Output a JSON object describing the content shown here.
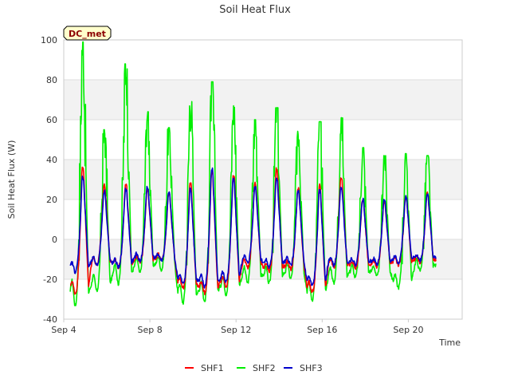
{
  "chart_data": {
    "type": "line",
    "title": "Soil Heat Flux",
    "xlabel": "Time",
    "ylabel": "Soil Heat Flux (W)",
    "ylim": [
      -40,
      100
    ],
    "yticks": [
      -40,
      -20,
      0,
      20,
      40,
      60,
      80,
      100
    ],
    "xlim_days": [
      4,
      22.5
    ],
    "xtick_days": [
      4,
      8,
      12,
      16,
      20
    ],
    "xticks": [
      "Sep 4",
      "Sep 8",
      "Sep 12",
      "Sep 16",
      "Sep 20"
    ],
    "badge": "DC_met",
    "grid_bands": true,
    "legend_position": "bottom-center",
    "legend": [
      {
        "name": "SHF1",
        "color": "#ff0000"
      },
      {
        "name": "SHF2",
        "color": "#00ee00"
      },
      {
        "name": "SHF3",
        "color": "#0000cc"
      }
    ],
    "series": [
      {
        "name": "SHF1",
        "color": "#ff0000",
        "daily": [
          {
            "peak": 36,
            "min": -24
          },
          {
            "peak": 27,
            "min": -11
          },
          {
            "peak": 27,
            "min": -12
          },
          {
            "peak": 25,
            "min": -10
          },
          {
            "peak": 23,
            "min": -9
          },
          {
            "peak": 28,
            "min": -22
          },
          {
            "peak": 34,
            "min": -24
          },
          {
            "peak": 32,
            "min": -21
          },
          {
            "peak": 28,
            "min": -12
          },
          {
            "peak": 35,
            "min": -14
          },
          {
            "peak": 25,
            "min": -13
          },
          {
            "peak": 27,
            "min": -24
          },
          {
            "peak": 31,
            "min": -12
          },
          {
            "peak": 20,
            "min": -13
          },
          {
            "peak": 19,
            "min": -12
          },
          {
            "peak": 21,
            "min": -11
          },
          {
            "peak": 23,
            "min": -10
          }
        ]
      },
      {
        "name": "SHF2",
        "color": "#00ee00",
        "daily": [
          {
            "peak": 99,
            "min": -27
          },
          {
            "peak": 55,
            "min": -22
          },
          {
            "peak": 88,
            "min": -17
          },
          {
            "peak": 64,
            "min": -13
          },
          {
            "peak": 56,
            "min": -12
          },
          {
            "peak": 70,
            "min": -27
          },
          {
            "peak": 79,
            "min": -26
          },
          {
            "peak": 67,
            "min": -23
          },
          {
            "peak": 60,
            "min": -18
          },
          {
            "peak": 66,
            "min": -18
          },
          {
            "peak": 57,
            "min": -16
          },
          {
            "peak": 59,
            "min": -26
          },
          {
            "peak": 61,
            "min": -18
          },
          {
            "peak": 46,
            "min": -16
          },
          {
            "peak": 42,
            "min": -16
          },
          {
            "peak": 43,
            "min": -21
          },
          {
            "peak": 42,
            "min": -13
          }
        ]
      },
      {
        "name": "SHF3",
        "color": "#0000cc",
        "daily": [
          {
            "peak": 31,
            "min": -14
          },
          {
            "peak": 24,
            "min": -11
          },
          {
            "peak": 25,
            "min": -12
          },
          {
            "peak": 26,
            "min": -9
          },
          {
            "peak": 23,
            "min": -9
          },
          {
            "peak": 25,
            "min": -20
          },
          {
            "peak": 35,
            "min": -21
          },
          {
            "peak": 30,
            "min": -19
          },
          {
            "peak": 26,
            "min": -10
          },
          {
            "peak": 30,
            "min": -12
          },
          {
            "peak": 24,
            "min": -11
          },
          {
            "peak": 24,
            "min": -21
          },
          {
            "peak": 26,
            "min": -11
          },
          {
            "peak": 20,
            "min": -11
          },
          {
            "peak": 19,
            "min": -11
          },
          {
            "peak": 21,
            "min": -10
          },
          {
            "peak": 23,
            "min": -9
          }
        ]
      }
    ],
    "day_start": 4.3
  }
}
